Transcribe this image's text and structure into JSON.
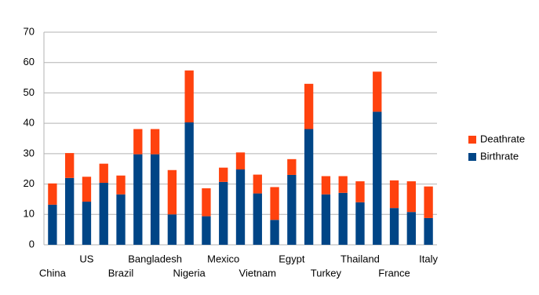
{
  "chart_data": {
    "type": "stacked-bar",
    "categories": [
      "China",
      null,
      "US",
      null,
      "Brazil",
      null,
      "Bangladesh",
      null,
      "Nigeria",
      null,
      "Mexico",
      null,
      "Vietnam",
      null,
      "Egypt",
      null,
      "Turkey",
      null,
      "Thailand",
      null,
      "France",
      null,
      "Italy"
    ],
    "series": [
      {
        "name": "Birthrate",
        "color": "#004586",
        "values": [
          13.2,
          22,
          14.2,
          20.4,
          16.6,
          29.8,
          29.8,
          10,
          40.3,
          9.4,
          20.7,
          24.8,
          16.9,
          8.2,
          23,
          38.1,
          16.6,
          17.1,
          14,
          43.8,
          12.1,
          10.8,
          8.8
        ]
      },
      {
        "name": "Deathrate",
        "color": "#ff420e",
        "values": [
          7,
          8.2,
          8.2,
          6.3,
          6.2,
          8.3,
          8.3,
          14.6,
          17.1,
          9.2,
          4.7,
          5.6,
          6.2,
          10.8,
          5.2,
          14.9,
          6,
          5.5,
          6.9,
          13.2,
          9.1,
          10.1,
          10.4
        ]
      }
    ],
    "ylim": [
      0,
      70
    ],
    "yticks": [
      0,
      10,
      20,
      30,
      40,
      50,
      60,
      70
    ],
    "grid": true,
    "legend": "right"
  }
}
